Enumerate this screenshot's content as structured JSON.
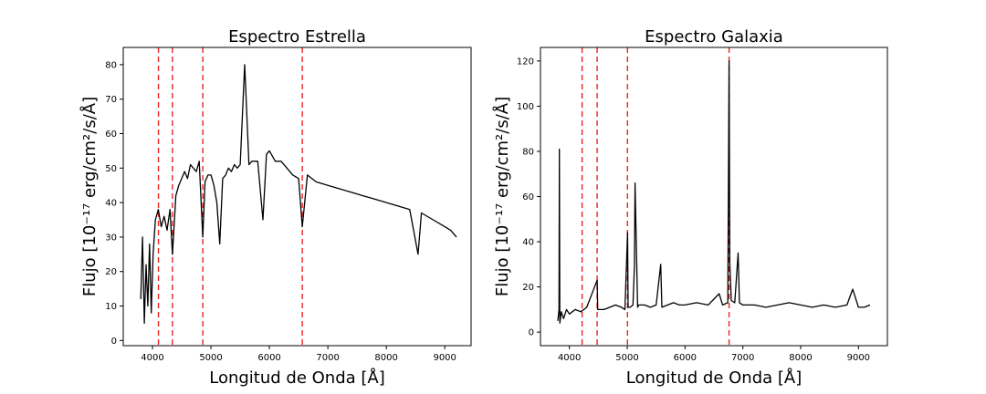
{
  "chart_data": [
    {
      "type": "line",
      "title": "Espectro Estrella",
      "xlabel": "Longitud de Onda [Å]",
      "ylabel": "Flujo [10⁻¹⁷ erg/cm²/s/Å]",
      "xlim": [
        3500,
        9450
      ],
      "ylim": [
        -1.5,
        85
      ],
      "xticks": [
        4000,
        5000,
        6000,
        7000,
        8000,
        9000
      ],
      "yticks": [
        0,
        10,
        20,
        30,
        40,
        50,
        60,
        70,
        80
      ],
      "grid": false,
      "reference_lines_x": [
        4102,
        4341,
        4861,
        6563
      ],
      "reference_line_color": "#ee2222",
      "series": [
        {
          "color": "#000000",
          "x": [
            3800,
            3830,
            3860,
            3890,
            3920,
            3950,
            3980,
            4010,
            4050,
            4100,
            4150,
            4200,
            4250,
            4300,
            4341,
            4400,
            4450,
            4500,
            4550,
            4600,
            4650,
            4700,
            4750,
            4800,
            4861,
            4900,
            4950,
            5000,
            5050,
            5100,
            5150,
            5200,
            5250,
            5300,
            5350,
            5400,
            5450,
            5500,
            5577,
            5650,
            5700,
            5800,
            5890,
            5950,
            6000,
            6100,
            6200,
            6300,
            6400,
            6500,
            6563,
            6650,
            6800,
            7000,
            7200,
            7400,
            7600,
            7800,
            8000,
            8200,
            8400,
            8542,
            8600,
            8800,
            9000,
            9100,
            9200
          ],
          "y": [
            12,
            30,
            5,
            22,
            10,
            28,
            8,
            25,
            35,
            38,
            33,
            36,
            32,
            38,
            25,
            42,
            45,
            47,
            49,
            47,
            51,
            50,
            49,
            52,
            30,
            46,
            48,
            48,
            45,
            40,
            28,
            47,
            48,
            50,
            49,
            51,
            50,
            51,
            80,
            51,
            52,
            52,
            35,
            54,
            55,
            52,
            52,
            50,
            48,
            47,
            33,
            48,
            46,
            45,
            44,
            43,
            42,
            41,
            40,
            39,
            38,
            25,
            37,
            35,
            33,
            32,
            30
          ]
        }
      ]
    },
    {
      "type": "line",
      "title": "Espectro Galaxia",
      "xlabel": "Longitud de Onda [Å]",
      "ylabel": "Flujo [10⁻¹⁷ erg/cm²/s/Å]",
      "xlim": [
        3500,
        9500
      ],
      "ylim": [
        -6,
        126
      ],
      "xticks": [
        4000,
        5000,
        6000,
        7000,
        8000,
        9000
      ],
      "yticks": [
        0,
        20,
        40,
        60,
        80,
        100,
        120
      ],
      "grid": false,
      "reference_lines_x": [
        4220,
        4480,
        5005,
        6762
      ],
      "reference_line_color": "#ee2222",
      "series": [
        {
          "color": "#000000",
          "x": [
            3800,
            3820,
            3827,
            3835,
            3860,
            3900,
            3950,
            4000,
            4100,
            4200,
            4300,
            4480,
            4490,
            4600,
            4700,
            4800,
            4900,
            4960,
            5007,
            5015,
            5050,
            5100,
            5125,
            5135,
            5180,
            5200,
            5300,
            5400,
            5500,
            5580,
            5600,
            5700,
            5800,
            5900,
            6000,
            6200,
            6400,
            6590,
            6650,
            6740,
            6762,
            6775,
            6800,
            6860,
            6918,
            6940,
            7000,
            7200,
            7400,
            7600,
            7800,
            8000,
            8200,
            8400,
            8600,
            8800,
            8900,
            9000,
            9100,
            9200
          ],
          "y": [
            5,
            10,
            81,
            4,
            9,
            6,
            10,
            8,
            10,
            9,
            11,
            23,
            10,
            10,
            11,
            12,
            11,
            10,
            44,
            11,
            11,
            12,
            29,
            66,
            11,
            12,
            12,
            11,
            12,
            30,
            11,
            12,
            13,
            12,
            12,
            13,
            12,
            17,
            12,
            13,
            120,
            30,
            14,
            13,
            35,
            13,
            12,
            12,
            11,
            12,
            13,
            12,
            11,
            12,
            11,
            12,
            19,
            11,
            11,
            12
          ]
        }
      ]
    }
  ]
}
